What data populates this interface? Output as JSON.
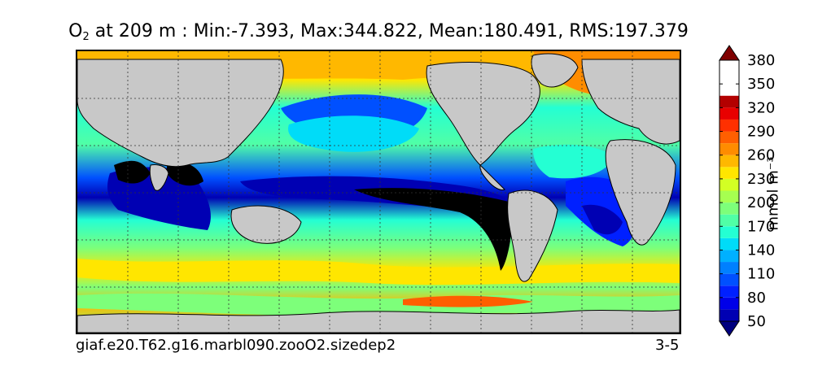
{
  "chart_data": {
    "type": "heatmap",
    "title": {
      "variable": "O",
      "subscript": "2",
      "text": " at 209 m : Min:-7.393, Max:344.822, Mean:180.491, RMS:197.379"
    },
    "stats": {
      "depth_m": 209,
      "min": -7.393,
      "max": 344.822,
      "mean": 180.491,
      "rms": 197.379
    },
    "colorbar": {
      "label": "mmol m⁻³",
      "ticks": [
        "50",
        "80",
        "110",
        "140",
        "170",
        "200",
        "230",
        "260",
        "290",
        "320",
        "350",
        "380"
      ],
      "levels": [
        35,
        50,
        65,
        80,
        95,
        110,
        125,
        140,
        155,
        170,
        185,
        200,
        215,
        230,
        245,
        260,
        275,
        290,
        305,
        320,
        335,
        350,
        365,
        380,
        395
      ],
      "colors": [
        "#00007f",
        "#0000b3",
        "#0000e8",
        "#0020ff",
        "#0050ff",
        "#0080ff",
        "#00b0ff",
        "#00dcf8",
        "#24ffd3",
        "#50ffa6",
        "#7dff7a",
        "#a6ff50",
        "#d3ff24",
        "#ffe600",
        "#ffb800",
        "#ff8c00",
        "#ff5f00",
        "#ff3000",
        "#e80000",
        "#b30000",
        "#7f0000"
      ],
      "extend": "both"
    },
    "grid": true,
    "map": {
      "projection": "global lat-lon",
      "land_color": "#c8c8c8",
      "missing_color": "#ffffff"
    }
  },
  "footer": {
    "case": "giaf.e20.T62.g16.marbl090.zooO2.sizedep2",
    "years": "3-5"
  }
}
